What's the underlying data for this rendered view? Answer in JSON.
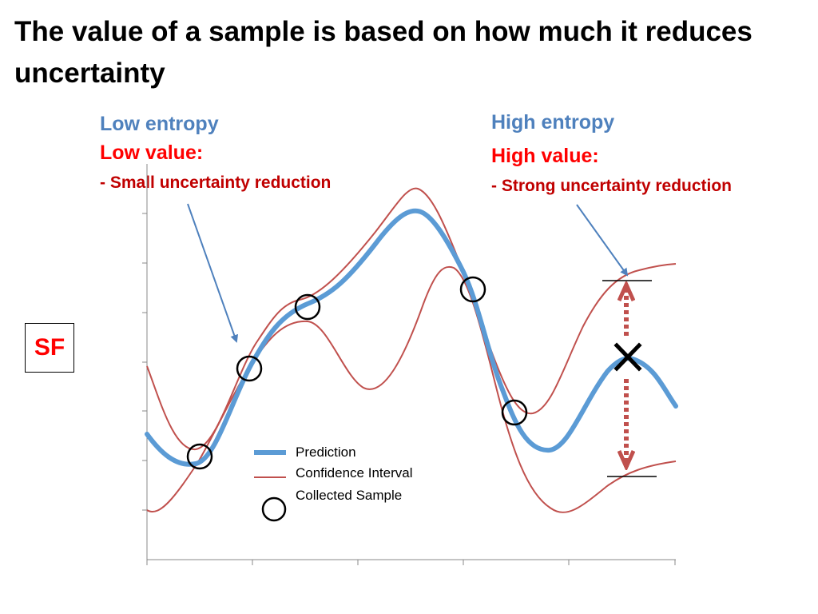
{
  "slide": {
    "title": "The value of a sample is based on how much it reduces uncertainty"
  },
  "annotations": {
    "left": {
      "entropy": "Low entropy",
      "value": "Low value:",
      "detail": "- Small uncertainty reduction"
    },
    "right": {
      "entropy": "High entropy",
      "value": "High value:",
      "detail": "- Strong uncertainty reduction"
    }
  },
  "sf_label": "SF",
  "legend": {
    "prediction": "Prediction",
    "confidence": "Confidence Interval",
    "sample": "Collected Sample"
  },
  "colors": {
    "prediction": "#5b9bd5",
    "confidence": "#c0504d",
    "annotation_blue": "#4f81bd",
    "annotation_red": "#ff0000",
    "detail_red": "#c00000",
    "arrow_blue": "#4f81bd",
    "interval_arrow": "#c0504d"
  },
  "icons": {
    "candidate_marker": "x-mark-icon",
    "sample_marker": "circle-icon"
  }
}
